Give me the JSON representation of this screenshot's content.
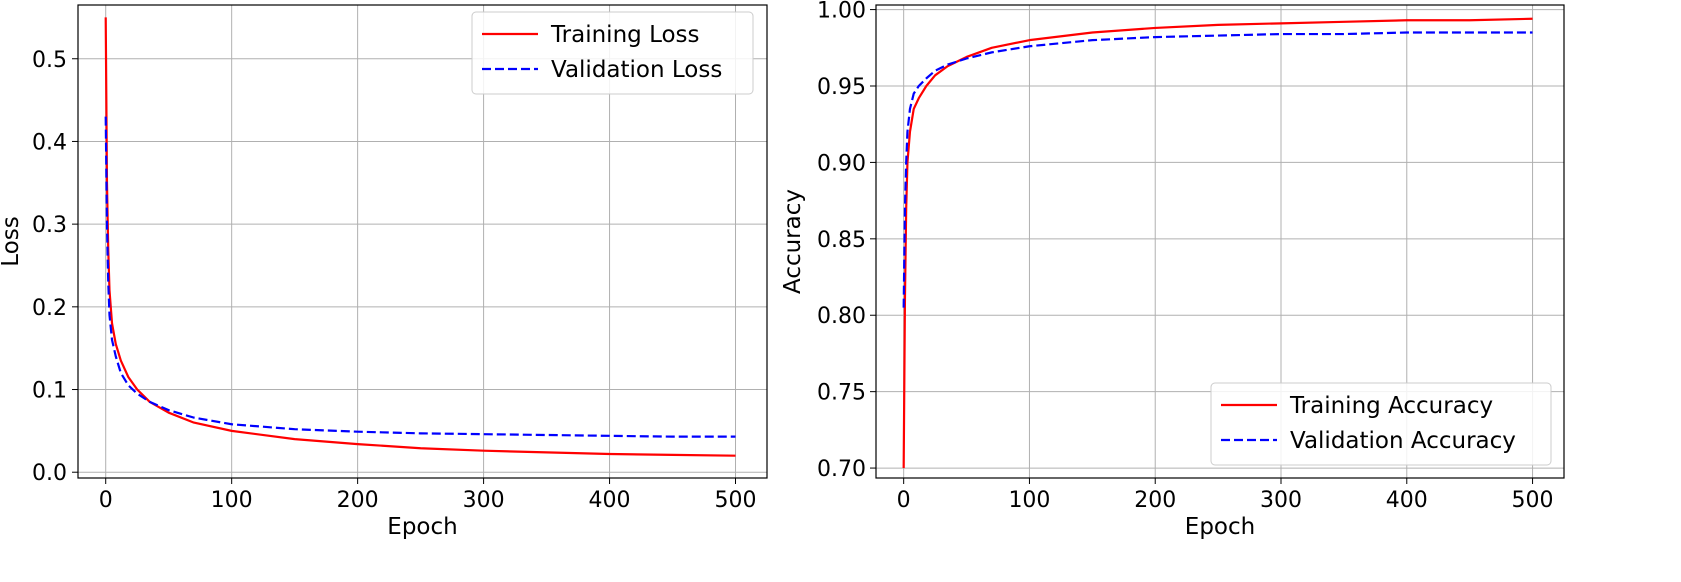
{
  "chart_data": [
    {
      "type": "line",
      "xlabel": "Epoch",
      "ylabel": "Loss",
      "xlim": [
        -22,
        525
      ],
      "ylim": [
        -0.007,
        0.565
      ],
      "xticks": [
        0,
        100,
        200,
        300,
        400,
        500
      ],
      "yticks": [
        0.0,
        0.1,
        0.2,
        0.3,
        0.4,
        0.5
      ],
      "ytick_decimals": 1,
      "grid": true,
      "legend_position": "top-right",
      "series": [
        {
          "name": "Training Loss",
          "color": "#ff0000",
          "style": "solid",
          "x": [
            0,
            1,
            2,
            3,
            5,
            8,
            12,
            18,
            25,
            35,
            50,
            70,
            100,
            150,
            200,
            250,
            300,
            350,
            400,
            450,
            500
          ],
          "y": [
            0.55,
            0.35,
            0.27,
            0.22,
            0.18,
            0.155,
            0.135,
            0.115,
            0.1,
            0.085,
            0.072,
            0.06,
            0.05,
            0.04,
            0.034,
            0.029,
            0.026,
            0.024,
            0.022,
            0.021,
            0.02
          ]
        },
        {
          "name": "Validation Loss",
          "color": "#0000ff",
          "style": "dashed",
          "x": [
            0,
            1,
            2,
            3,
            5,
            8,
            12,
            18,
            25,
            35,
            50,
            70,
            100,
            150,
            200,
            250,
            300,
            350,
            400,
            450,
            500
          ],
          "y": [
            0.43,
            0.3,
            0.23,
            0.19,
            0.16,
            0.14,
            0.12,
            0.105,
            0.095,
            0.085,
            0.075,
            0.066,
            0.058,
            0.052,
            0.049,
            0.047,
            0.046,
            0.045,
            0.044,
            0.043,
            0.043
          ]
        }
      ]
    },
    {
      "type": "line",
      "xlabel": "Epoch",
      "ylabel": "Accuracy",
      "xlim": [
        -22,
        525
      ],
      "ylim": [
        0.6935,
        1.003
      ],
      "xticks": [
        0,
        100,
        200,
        300,
        400,
        500
      ],
      "yticks": [
        0.7,
        0.75,
        0.8,
        0.85,
        0.9,
        0.95,
        1.0
      ],
      "ytick_decimals": 2,
      "grid": true,
      "legend_position": "bottom-right",
      "series": [
        {
          "name": "Training Accuracy",
          "color": "#ff0000",
          "style": "solid",
          "x": [
            0,
            1,
            2,
            3,
            5,
            8,
            12,
            18,
            25,
            35,
            50,
            70,
            100,
            150,
            200,
            250,
            300,
            350,
            400,
            450,
            500
          ],
          "y": [
            0.7,
            0.81,
            0.87,
            0.9,
            0.92,
            0.935,
            0.942,
            0.95,
            0.957,
            0.963,
            0.969,
            0.975,
            0.98,
            0.985,
            0.988,
            0.99,
            0.991,
            0.992,
            0.993,
            0.993,
            0.994
          ]
        },
        {
          "name": "Validation Accuracy",
          "color": "#0000ff",
          "style": "dashed",
          "x": [
            0,
            1,
            2,
            3,
            5,
            8,
            12,
            18,
            25,
            35,
            50,
            70,
            100,
            150,
            200,
            250,
            300,
            350,
            400,
            450,
            500
          ],
          "y": [
            0.805,
            0.87,
            0.9,
            0.92,
            0.935,
            0.945,
            0.95,
            0.955,
            0.96,
            0.964,
            0.968,
            0.972,
            0.976,
            0.98,
            0.982,
            0.983,
            0.984,
            0.984,
            0.985,
            0.985,
            0.985
          ]
        }
      ]
    }
  ]
}
